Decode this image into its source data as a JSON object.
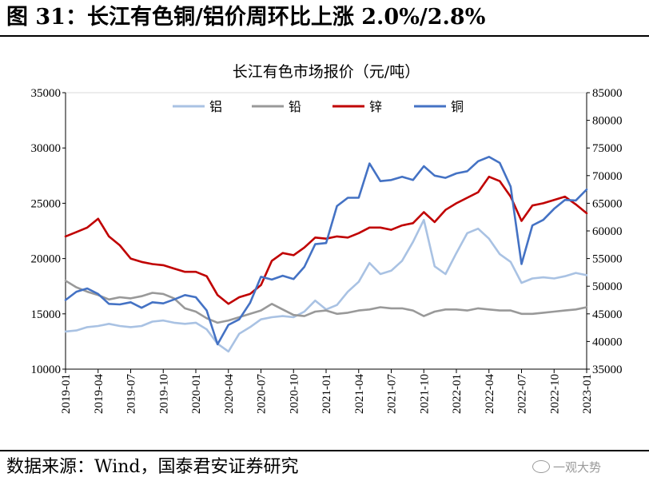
{
  "figure": {
    "title": "图 31：长江有色铜/铝价周环比上涨 2.0%/2.8%",
    "source": "数据来源：Wind，国泰君安证券研究",
    "watermark": "一观大势"
  },
  "chart_data": {
    "type": "line",
    "title": "长江有色市场报价（元/吨）",
    "x_labels": [
      "2019-01",
      "2019-04",
      "2019-07",
      "2019-10",
      "2020-01",
      "2020-04",
      "2020-07",
      "2020-10",
      "2021-01",
      "2021-04",
      "2021-07",
      "2021-10",
      "2022-01",
      "2022-04",
      "2022-07",
      "2022-10",
      "2023-01"
    ],
    "x_range": [
      "2019-01",
      "2023-01"
    ],
    "y_left": {
      "range": [
        10000,
        35000
      ],
      "ticks": [
        10000,
        15000,
        20000,
        25000,
        30000,
        35000
      ]
    },
    "y_right": {
      "range": [
        35000,
        85000
      ],
      "ticks": [
        35000,
        40000,
        45000,
        50000,
        55000,
        60000,
        65000,
        70000,
        75000,
        80000,
        85000
      ]
    },
    "grid": false,
    "legend_position": "top",
    "series": [
      {
        "name": "铝",
        "color": "#a9c2e3",
        "axis": "left",
        "x": [
          "2019-01",
          "2019-02",
          "2019-03",
          "2019-04",
          "2019-05",
          "2019-06",
          "2019-07",
          "2019-08",
          "2019-09",
          "2019-10",
          "2019-11",
          "2019-12",
          "2020-01",
          "2020-02",
          "2020-03",
          "2020-04",
          "2020-05",
          "2020-06",
          "2020-07",
          "2020-08",
          "2020-09",
          "2020-10",
          "2020-11",
          "2020-12",
          "2021-01",
          "2021-02",
          "2021-03",
          "2021-04",
          "2021-05",
          "2021-06",
          "2021-07",
          "2021-08",
          "2021-09",
          "2021-10",
          "2021-11",
          "2021-12",
          "2022-01",
          "2022-02",
          "2022-03",
          "2022-04",
          "2022-05",
          "2022-06",
          "2022-07",
          "2022-08",
          "2022-09",
          "2022-10",
          "2022-11",
          "2022-12",
          "2023-01"
        ],
        "values": [
          13400,
          13500,
          13800,
          13900,
          14100,
          13900,
          13800,
          13900,
          14300,
          14400,
          14200,
          14100,
          14200,
          13600,
          12300,
          11600,
          13200,
          13800,
          14500,
          14700,
          14800,
          14700,
          15200,
          16200,
          15400,
          15800,
          17000,
          17900,
          19600,
          18600,
          18900,
          19800,
          21500,
          23500,
          19300,
          18600,
          20500,
          22300,
          22700,
          21800,
          20400,
          19700,
          17800,
          18200,
          18300,
          18200,
          18400,
          18700,
          18500
        ]
      },
      {
        "name": "铅",
        "color": "#999999",
        "axis": "left",
        "x": [
          "2019-01",
          "2019-02",
          "2019-03",
          "2019-04",
          "2019-05",
          "2019-06",
          "2019-07",
          "2019-08",
          "2019-09",
          "2019-10",
          "2019-11",
          "2019-12",
          "2020-01",
          "2020-02",
          "2020-03",
          "2020-04",
          "2020-05",
          "2020-06",
          "2020-07",
          "2020-08",
          "2020-09",
          "2020-10",
          "2020-11",
          "2020-12",
          "2021-01",
          "2021-02",
          "2021-03",
          "2021-04",
          "2021-05",
          "2021-06",
          "2021-07",
          "2021-08",
          "2021-09",
          "2021-10",
          "2021-11",
          "2021-12",
          "2022-01",
          "2022-02",
          "2022-03",
          "2022-04",
          "2022-05",
          "2022-06",
          "2022-07",
          "2022-08",
          "2022-09",
          "2022-10",
          "2022-11",
          "2022-12",
          "2023-01"
        ],
        "values": [
          18000,
          17400,
          17000,
          16700,
          16300,
          16500,
          16400,
          16600,
          16900,
          16800,
          16400,
          15500,
          15200,
          14600,
          14200,
          14400,
          14700,
          15000,
          15300,
          15900,
          15400,
          14900,
          14800,
          15200,
          15300,
          15000,
          15100,
          15300,
          15400,
          15600,
          15500,
          15500,
          15300,
          14800,
          15200,
          15400,
          15400,
          15300,
          15500,
          15400,
          15300,
          15300,
          15000,
          15000,
          15100,
          15200,
          15300,
          15400,
          15600
        ]
      },
      {
        "name": "锌",
        "color": "#c00000",
        "axis": "left",
        "x": [
          "2019-01",
          "2019-02",
          "2019-03",
          "2019-04",
          "2019-05",
          "2019-06",
          "2019-07",
          "2019-08",
          "2019-09",
          "2019-10",
          "2019-11",
          "2019-12",
          "2020-01",
          "2020-02",
          "2020-03",
          "2020-04",
          "2020-05",
          "2020-06",
          "2020-07",
          "2020-08",
          "2020-09",
          "2020-10",
          "2020-11",
          "2020-12",
          "2021-01",
          "2021-02",
          "2021-03",
          "2021-04",
          "2021-05",
          "2021-06",
          "2021-07",
          "2021-08",
          "2021-09",
          "2021-10",
          "2021-11",
          "2021-12",
          "2022-01",
          "2022-02",
          "2022-03",
          "2022-04",
          "2022-05",
          "2022-06",
          "2022-07",
          "2022-08",
          "2022-09",
          "2022-10",
          "2022-11",
          "2022-12",
          "2023-01"
        ],
        "values": [
          22000,
          22400,
          22800,
          23600,
          22000,
          21200,
          20000,
          19700,
          19500,
          19400,
          19100,
          18800,
          18800,
          18400,
          16700,
          15900,
          16500,
          16800,
          17600,
          19800,
          20500,
          20300,
          21000,
          21900,
          21800,
          22000,
          21900,
          22300,
          22800,
          22800,
          22600,
          23000,
          23200,
          24200,
          23300,
          24400,
          25000,
          25500,
          26000,
          27400,
          27000,
          25600,
          23400,
          24800,
          25000,
          25300,
          25600,
          24900,
          24100
        ]
      },
      {
        "name": "铜",
        "color": "#4472c4",
        "axis": "right",
        "x": [
          "2019-01",
          "2019-02",
          "2019-03",
          "2019-04",
          "2019-05",
          "2019-06",
          "2019-07",
          "2019-08",
          "2019-09",
          "2019-10",
          "2019-11",
          "2019-12",
          "2020-01",
          "2020-02",
          "2020-03",
          "2020-04",
          "2020-05",
          "2020-06",
          "2020-07",
          "2020-08",
          "2020-09",
          "2020-10",
          "2020-11",
          "2020-12",
          "2021-01",
          "2021-02",
          "2021-03",
          "2021-04",
          "2021-05",
          "2021-06",
          "2021-07",
          "2021-08",
          "2021-09",
          "2021-10",
          "2021-11",
          "2021-12",
          "2022-01",
          "2022-02",
          "2022-03",
          "2022-04",
          "2022-05",
          "2022-06",
          "2022-07",
          "2022-08",
          "2022-09",
          "2022-10",
          "2022-11",
          "2022-12",
          "2023-01"
        ],
        "values": [
          47500,
          49000,
          49600,
          48600,
          46800,
          46700,
          47100,
          46100,
          47100,
          46900,
          47600,
          48400,
          48000,
          45600,
          39500,
          43000,
          44000,
          47000,
          51700,
          51200,
          51900,
          51300,
          53500,
          57600,
          57800,
          64500,
          66000,
          66000,
          72200,
          69000,
          69200,
          69800,
          69200,
          71700,
          70000,
          69600,
          70400,
          70800,
          72600,
          73400,
          72300,
          68000,
          54000,
          61000,
          62000,
          64000,
          65600,
          65500,
          67500
        ]
      }
    ]
  }
}
